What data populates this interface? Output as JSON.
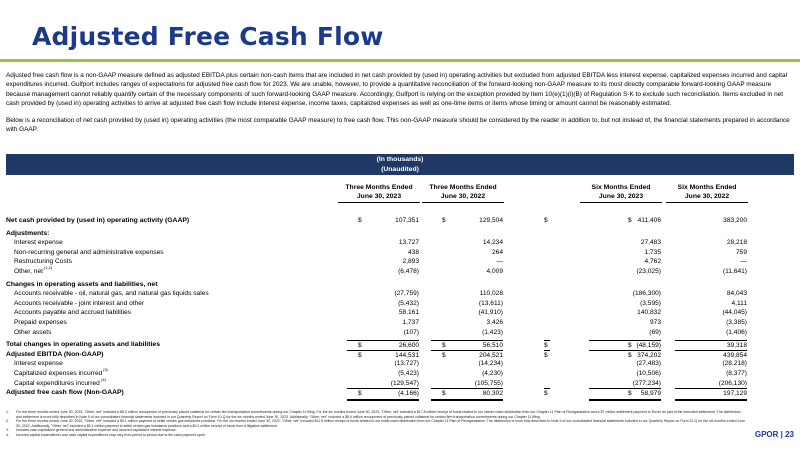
{
  "title": "Adjusted Free Cash Flow",
  "intro": [
    "Adjusted free cash flow is a non-GAAP measure defined as adjusted EBITDA plus certain non-cash items that are included in net cash provided by (used in) operating activities but excluded from adjusted EBITDA less interest expense, capitalized expenses incurred and capital expenditures incurred. Gulfport includes ranges of expectations for adjusted free cash flow for 2023. We are unable, however, to provide a quantitative reconciliation of the forward-looking non-GAAP measure to its most directly comparable forward-looking GAAP measure because management cannot reliably quantify certain of the necessary components of such forward-looking GAAP measure. Accordingly, Gulfport is relying on the exception provided by Item 10(e)(1)(i)(B) of Regulation S-K to exclude such reconciliation. Items excluded in net cash provided by (used in) operating activities to arrive at adjusted free cash flow include interest expense, income taxes, capitalized expenses as well as one-time items or items whose timing or amount cannot be reasonably estimated.",
    "Below is a reconciliation of net cash provided by (used in) operating activities (the most comparable GAAP measure) to free cash flow. This non-GAAP measure should be considered by the reader in addition to, but not instead of, the financial statements prepared in accordance with GAAP."
  ],
  "banner": {
    "line1": "(In thousands)",
    "line2": "(Unaudited)"
  },
  "columns": [
    {
      "line1": "Three Months Ended",
      "line2": "June 30, 2023"
    },
    {
      "line1": "Three Months Ended",
      "line2": "June 30, 2022"
    },
    {
      "line1": "Six Months Ended",
      "line2": "June 30, 2023"
    },
    {
      "line1": "Six Months Ended",
      "line2": "June 30, 2022"
    }
  ],
  "rows": [
    {
      "label": "Net cash provided by (used in) operating activity (GAAP)",
      "values": [
        "107,351",
        "129,504",
        "411,406",
        "383,200"
      ]
    },
    {
      "label": "Adjustments:",
      "values": [
        "",
        "",
        "",
        ""
      ]
    },
    {
      "label": "Interest expense",
      "values": [
        "13,727",
        "14,234",
        "27,483",
        "28,218"
      ]
    },
    {
      "label": "Non-recurring general and administrative expenses",
      "values": [
        "438",
        "264",
        "1,735",
        "759"
      ]
    },
    {
      "label": "Restructuring Costs",
      "values": [
        "2,893",
        "—",
        "4,762",
        "—"
      ]
    },
    {
      "label": "Other, net",
      "sup": "(1,2)",
      "values": [
        "(6,478)",
        "4,009",
        "(23,025)",
        "(11,641)"
      ]
    },
    {
      "label": "Changes in operating assets and liabilities, net",
      "values": [
        "",
        "",
        "",
        ""
      ]
    },
    {
      "label": "Accounts receivable - oil, natural gas, and natural gas liquids sales",
      "values": [
        "(27,759)",
        "110,028",
        "(186,300)",
        "84,043"
      ]
    },
    {
      "label": "Accounts receivable - joint interest and other",
      "values": [
        "(5,432)",
        "(13,611)",
        "(3,595)",
        "4,111"
      ]
    },
    {
      "label": "Accounts payable and accrued liabilities",
      "values": [
        "58,161",
        "(41,910)",
        "140,832",
        "(44,045)"
      ]
    },
    {
      "label": "Prepaid expenses",
      "values": [
        "1,737",
        "3,426",
        "973",
        "(3,385)"
      ]
    },
    {
      "label": "Other assets",
      "values": [
        "(107)",
        "(1,423)",
        "(69)",
        "(1,406)"
      ]
    },
    {
      "label": "Total changes in operating assets and liabilities",
      "values": [
        "26,600",
        "56,510",
        "(48,159)",
        "39,318"
      ]
    },
    {
      "label": "Adjusted EBITDA (Non-GAAP)",
      "values": [
        "144,531",
        "204,521",
        "374,202",
        "439,854"
      ]
    },
    {
      "label": "Interest expense",
      "values": [
        "(13,727)",
        "(14,234)",
        "(27,483)",
        "(28,218)"
      ]
    },
    {
      "label": "Capitalized expenses incurred",
      "sup": "(3)",
      "values": [
        "(5,423)",
        "(4,230)",
        "(10,506)",
        "(8,377)"
      ]
    },
    {
      "label": "Capital expenditures incurred",
      "sup": "(4)",
      "values": [
        "(129,547)",
        "(105,755)",
        "(277,234)",
        "(206,130)"
      ]
    },
    {
      "label": "Adjusted free cash flow (Non-GAAP)",
      "values": [
        "(4,166)",
        "80,302",
        "58,979",
        "197,129"
      ]
    }
  ],
  "dollar": "$",
  "footnotes": [
    {
      "n": "1.",
      "text": "For the three months ended June 30, 2023, \"Other, net\" included a $5.0 million recoupment of previously placed collateral for certain firm transportation commitments during our Chapter 11 filing. For the six months ended June 30, 2023, \"Other, net\" included a $17.8 million receipt of funds related to our interim claim distribution from our Chapter 11 Plan of Reorganization and a $7 million settlement payment to Rover as part of the executed settlement. The distribution and settlement is more fully described in Note 9 of our consolidated financial statements included in our Quarterly Report on Form 10-Q for the six months ended June 30, 2023. Additionally, \"Other, net\" included a $5.0 million recoupment of previously placed collateral for certain firm transportation commitments during our Chapter 11 filing."
    },
    {
      "n": "2.",
      "text": "For the three months ended June 30, 2022, \"Other, net\" included a $5.1 million payment to settle certain gas imbalance positions. For the six months ended June 30, 2022, \"Other, net\" included $11.5 million receipt of funds related to our initial claim distribution from our Chapter 11 Plan of Reorganization. The distribution is more fully described in Note 9 of our consolidated financial statements included in our Quarterly Report on Form 10-Q for the six months ended June 30, 2022. Additionally, \"Other, net\" included a $5.1 million payment to settle certain gas imbalance positions and a $0.2 million receipt of funds from a litigation settlement."
    },
    {
      "n": "3.",
      "text": "Includes cash capitalized general and administrative expense and incurred capitalized interest expense."
    },
    {
      "n": "4.",
      "text": "Incurred capital expenditures and cash capital expenditures may vary from period to period due to the cash payment cycle."
    }
  ],
  "page_footer": "GPOR | 23",
  "colors": {
    "title": "#1b3a8a",
    "accent_rule": "#9bc13c",
    "banner": "#1f3864"
  }
}
